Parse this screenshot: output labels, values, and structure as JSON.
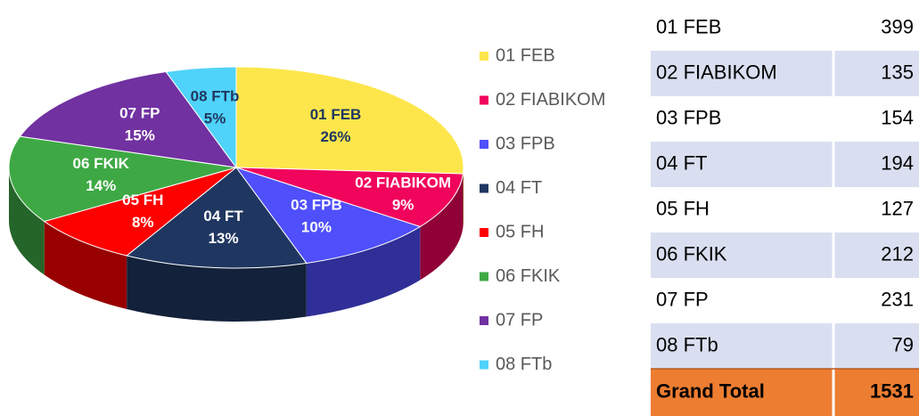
{
  "chart_data": {
    "type": "pie",
    "categories": [
      "01 FEB",
      "02 FIABIKOM",
      "03 FPB",
      "04 FT",
      "05 FH",
      "06 FKIK",
      "07 FP",
      "08 FTb"
    ],
    "values": [
      26,
      9,
      10,
      13,
      8,
      14,
      15,
      5
    ],
    "value_labels": [
      "26%",
      "9%",
      "10%",
      "13%",
      "8%",
      "14%",
      "15%",
      "5%"
    ],
    "colors": [
      "#fde64b",
      "#f0045c",
      "#4f4ffb",
      "#1f3760",
      "#fd0000",
      "#3ea944",
      "#7131a1",
      "#4fd3fb"
    ],
    "legend": "right"
  },
  "table": {
    "rows": [
      [
        "01 FEB",
        "399"
      ],
      [
        "02 FIABIKOM",
        "135"
      ],
      [
        "03 FPB",
        "154"
      ],
      [
        "04 FT",
        "194"
      ],
      [
        "05 FH",
        "127"
      ],
      [
        "06 FKIK",
        "212"
      ],
      [
        "07 FP",
        "231"
      ],
      [
        "08 FTb",
        "79"
      ]
    ],
    "total": [
      "Grand Total",
      "1531"
    ]
  }
}
